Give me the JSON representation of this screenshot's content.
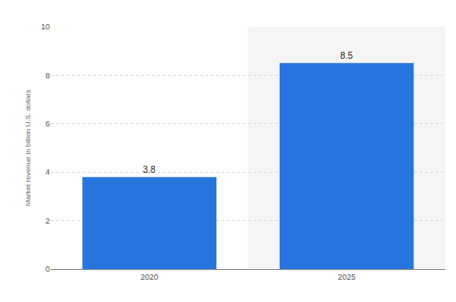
{
  "chart_data": {
    "type": "bar",
    "y_label": "Market revenue in billion U.S. dollars",
    "categories": [
      "2020",
      "2025"
    ],
    "values": [
      3.8,
      8.5
    ],
    "color": "#2876dd",
    "ylim": [
      0,
      10
    ],
    "yticks": [
      0,
      2,
      4,
      6,
      8,
      10
    ],
    "grid": true,
    "data_labels": true
  }
}
